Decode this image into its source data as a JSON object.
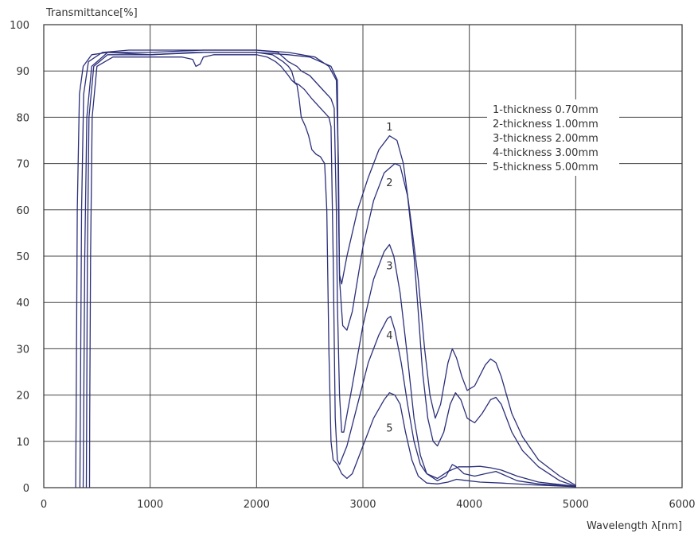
{
  "chart_data": {
    "type": "line",
    "ylabel": "Transmittance[%]",
    "xlabel": "Wavelength  λ[nm]",
    "xlim": [
      0,
      6000
    ],
    "ylim": [
      0,
      100
    ],
    "x_ticks": [
      0,
      1000,
      2000,
      3000,
      4000,
      5000,
      6000
    ],
    "y_ticks": [
      0,
      10,
      20,
      30,
      40,
      50,
      60,
      70,
      80,
      90,
      100
    ],
    "grid": true,
    "line_color": "#2b2f7a",
    "legend_position": "top-right",
    "legend": [
      "1-thickness 0.70mm",
      "2-thickness 1.00mm",
      "3-thickness 2.00mm",
      "4-thickness 3.00mm",
      "5-thickness 5.00mm"
    ],
    "series": [
      {
        "label": "1",
        "label_at": [
          3250,
          78
        ],
        "points": [
          [
            300,
            0
          ],
          [
            305,
            20
          ],
          [
            315,
            60
          ],
          [
            335,
            85
          ],
          [
            370,
            91
          ],
          [
            450,
            93.5
          ],
          [
            600,
            94
          ],
          [
            1000,
            93.5
          ],
          [
            1500,
            94
          ],
          [
            2000,
            94
          ],
          [
            2300,
            93.5
          ],
          [
            2500,
            93
          ],
          [
            2700,
            91
          ],
          [
            2760,
            88
          ],
          [
            2770,
            60
          ],
          [
            2780,
            46
          ],
          [
            2800,
            44
          ],
          [
            2850,
            50
          ],
          [
            2950,
            60
          ],
          [
            3050,
            67
          ],
          [
            3150,
            73
          ],
          [
            3250,
            76
          ],
          [
            3320,
            75
          ],
          [
            3380,
            70
          ],
          [
            3450,
            58
          ],
          [
            3520,
            45
          ],
          [
            3580,
            30
          ],
          [
            3630,
            20
          ],
          [
            3680,
            15
          ],
          [
            3730,
            18
          ],
          [
            3800,
            27
          ],
          [
            3840,
            30
          ],
          [
            3880,
            28
          ],
          [
            3930,
            24
          ],
          [
            3980,
            21
          ],
          [
            4050,
            22
          ],
          [
            4150,
            26.5
          ],
          [
            4200,
            27.8
          ],
          [
            4250,
            27
          ],
          [
            4300,
            24
          ],
          [
            4400,
            16
          ],
          [
            4500,
            11
          ],
          [
            4650,
            6
          ],
          [
            4850,
            2.5
          ],
          [
            5000,
            0.5
          ]
        ]
      },
      {
        "label": "2",
        "label_at": [
          3250,
          66
        ],
        "points": [
          [
            340,
            0
          ],
          [
            345,
            20
          ],
          [
            355,
            60
          ],
          [
            375,
            85
          ],
          [
            420,
            92
          ],
          [
            550,
            94
          ],
          [
            800,
            94.5
          ],
          [
            1400,
            94.5
          ],
          [
            2000,
            94.5
          ],
          [
            2300,
            94
          ],
          [
            2550,
            93
          ],
          [
            2680,
            91
          ],
          [
            2750,
            88
          ],
          [
            2770,
            70
          ],
          [
            2780,
            45
          ],
          [
            2810,
            35
          ],
          [
            2850,
            34
          ],
          [
            2900,
            38
          ],
          [
            3000,
            52
          ],
          [
            3100,
            62
          ],
          [
            3200,
            68
          ],
          [
            3300,
            70
          ],
          [
            3350,
            69.5
          ],
          [
            3420,
            63
          ],
          [
            3480,
            50
          ],
          [
            3520,
            38
          ],
          [
            3560,
            25
          ],
          [
            3610,
            15
          ],
          [
            3660,
            10
          ],
          [
            3700,
            9
          ],
          [
            3760,
            12
          ],
          [
            3820,
            18
          ],
          [
            3870,
            20.5
          ],
          [
            3920,
            19
          ],
          [
            3980,
            15
          ],
          [
            4050,
            14
          ],
          [
            4120,
            16
          ],
          [
            4200,
            19
          ],
          [
            4250,
            19.5
          ],
          [
            4300,
            18
          ],
          [
            4400,
            12
          ],
          [
            4500,
            8
          ],
          [
            4650,
            4.5
          ],
          [
            4850,
            1.5
          ],
          [
            5000,
            0.3
          ]
        ]
      },
      {
        "label": "3",
        "label_at": [
          3250,
          48
        ],
        "points": [
          [
            370,
            0
          ],
          [
            375,
            15
          ],
          [
            385,
            50
          ],
          [
            405,
            80
          ],
          [
            450,
            91
          ],
          [
            600,
            94
          ],
          [
            1000,
            94
          ],
          [
            1500,
            94.5
          ],
          [
            2000,
            94.5
          ],
          [
            2200,
            94
          ],
          [
            2300,
            92
          ],
          [
            2380,
            91
          ],
          [
            2420,
            90
          ],
          [
            2500,
            89
          ],
          [
            2620,
            86
          ],
          [
            2700,
            84
          ],
          [
            2730,
            82
          ],
          [
            2750,
            60
          ],
          [
            2760,
            40
          ],
          [
            2780,
            20
          ],
          [
            2800,
            12
          ],
          [
            2820,
            12
          ],
          [
            2900,
            22
          ],
          [
            3000,
            35
          ],
          [
            3100,
            45
          ],
          [
            3200,
            51
          ],
          [
            3250,
            52.5
          ],
          [
            3290,
            50
          ],
          [
            3350,
            42
          ],
          [
            3420,
            28
          ],
          [
            3480,
            15
          ],
          [
            3540,
            7
          ],
          [
            3600,
            3
          ],
          [
            3700,
            1.5
          ],
          [
            3780,
            2.5
          ],
          [
            3840,
            5
          ],
          [
            3880,
            4.5
          ],
          [
            3950,
            3
          ],
          [
            4050,
            2.5
          ],
          [
            4150,
            3
          ],
          [
            4250,
            3.5
          ],
          [
            4300,
            3
          ],
          [
            4450,
            1.5
          ],
          [
            4650,
            0.8
          ],
          [
            5000,
            0.3
          ]
        ]
      },
      {
        "label": "4",
        "label_at": [
          3250,
          33
        ],
        "points": [
          [
            400,
            0
          ],
          [
            403,
            15
          ],
          [
            410,
            50
          ],
          [
            425,
            80
          ],
          [
            470,
            91
          ],
          [
            600,
            93.5
          ],
          [
            1000,
            93.5
          ],
          [
            1400,
            94
          ],
          [
            2000,
            94
          ],
          [
            2150,
            93.5
          ],
          [
            2250,
            92
          ],
          [
            2300,
            91
          ],
          [
            2330,
            90
          ],
          [
            2360,
            87.5
          ],
          [
            2400,
            87
          ],
          [
            2450,
            86
          ],
          [
            2520,
            84
          ],
          [
            2600,
            82
          ],
          [
            2680,
            80
          ],
          [
            2700,
            78
          ],
          [
            2720,
            50
          ],
          [
            2740,
            15
          ],
          [
            2760,
            6
          ],
          [
            2780,
            5
          ],
          [
            2850,
            9
          ],
          [
            2950,
            18
          ],
          [
            3050,
            27
          ],
          [
            3150,
            33
          ],
          [
            3230,
            36.5
          ],
          [
            3260,
            37
          ],
          [
            3300,
            34
          ],
          [
            3360,
            27
          ],
          [
            3420,
            18
          ],
          [
            3480,
            10
          ],
          [
            3540,
            5
          ],
          [
            3600,
            3
          ],
          [
            3700,
            2
          ],
          [
            3800,
            3.5
          ],
          [
            3900,
            4.5
          ],
          [
            4000,
            4.5
          ],
          [
            4100,
            4.6
          ],
          [
            4200,
            4.3
          ],
          [
            4300,
            3.8
          ],
          [
            4450,
            2.5
          ],
          [
            4650,
            1.2
          ],
          [
            5000,
            0.3
          ]
        ]
      },
      {
        "label": "5",
        "label_at": [
          3250,
          13
        ],
        "points": [
          [
            430,
            0
          ],
          [
            432,
            15
          ],
          [
            440,
            50
          ],
          [
            455,
            80
          ],
          [
            500,
            91
          ],
          [
            650,
            93
          ],
          [
            1000,
            93
          ],
          [
            1300,
            93
          ],
          [
            1400,
            92.5
          ],
          [
            1430,
            91
          ],
          [
            1470,
            91.5
          ],
          [
            1500,
            93
          ],
          [
            1600,
            93.5
          ],
          [
            2000,
            93.5
          ],
          [
            2100,
            93
          ],
          [
            2180,
            92
          ],
          [
            2230,
            91
          ],
          [
            2300,
            89
          ],
          [
            2330,
            88
          ],
          [
            2380,
            87
          ],
          [
            2400,
            84
          ],
          [
            2420,
            80
          ],
          [
            2460,
            78
          ],
          [
            2490,
            76
          ],
          [
            2520,
            73
          ],
          [
            2560,
            72
          ],
          [
            2600,
            71.5
          ],
          [
            2640,
            70
          ],
          [
            2660,
            60
          ],
          [
            2680,
            30
          ],
          [
            2700,
            10
          ],
          [
            2720,
            6
          ],
          [
            2760,
            5
          ],
          [
            2800,
            3
          ],
          [
            2850,
            2
          ],
          [
            2900,
            3
          ],
          [
            2950,
            6
          ],
          [
            3000,
            9
          ],
          [
            3100,
            15
          ],
          [
            3200,
            19
          ],
          [
            3250,
            20.5
          ],
          [
            3300,
            20
          ],
          [
            3350,
            18
          ],
          [
            3400,
            12
          ],
          [
            3460,
            6
          ],
          [
            3520,
            2.5
          ],
          [
            3600,
            1
          ],
          [
            3700,
            0.8
          ],
          [
            3800,
            1.2
          ],
          [
            3880,
            1.8
          ],
          [
            3950,
            1.6
          ],
          [
            4100,
            1.2
          ],
          [
            4300,
            1
          ],
          [
            4600,
            0.6
          ],
          [
            5000,
            0.2
          ]
        ]
      }
    ]
  }
}
